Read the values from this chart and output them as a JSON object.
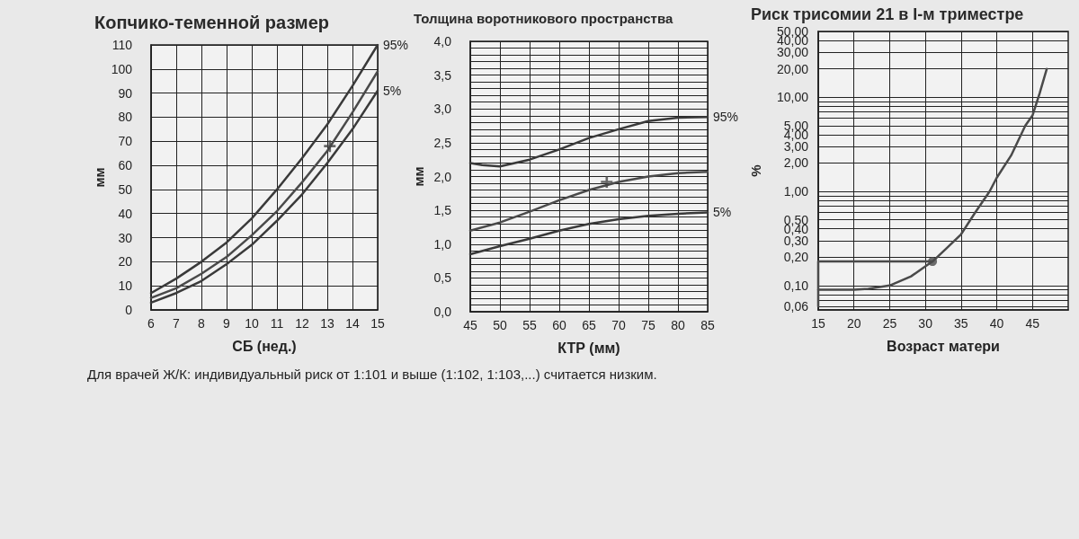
{
  "chart_data": [
    {
      "type": "line",
      "title": "Копчико-теменной размер",
      "xlabel": "СБ (нед.)",
      "ylabel": "мм",
      "xlim": [
        6,
        15
      ],
      "xticks": [
        6,
        7,
        8,
        9,
        10,
        11,
        12,
        13,
        14,
        15
      ],
      "ylim": [
        0,
        110
      ],
      "yticks": [
        0,
        10,
        20,
        30,
        40,
        50,
        60,
        70,
        80,
        90,
        100,
        110
      ],
      "grid": true,
      "legend": false,
      "marker": "none",
      "line_style": "solid",
      "annotations": [
        "Для врачей Ж/К: индивидуальный риск от 1:101 и выше (1:102, 1:103,...) считается низким."
      ],
      "series": [
        {
          "name": "95%",
          "color": "#3a3a3a",
          "x": [
            6,
            7,
            8,
            9,
            10,
            11,
            12,
            13,
            14,
            15
          ],
          "values": [
            7,
            13,
            20,
            28,
            38,
            50,
            63,
            77,
            93,
            110
          ]
        },
        {
          "color": "#4a4a4a",
          "x": [
            6,
            7,
            8,
            9,
            10,
            11,
            12,
            13,
            14,
            15
          ],
          "values": [
            5,
            9,
            15,
            22,
            31,
            41,
            53,
            66,
            82,
            99
          ]
        },
        {
          "name": "5%",
          "color": "#3a3a3a",
          "x": [
            6,
            7,
            8,
            9,
            10,
            11,
            12,
            13,
            14,
            15
          ],
          "values": [
            3,
            7,
            12,
            19,
            27,
            37,
            48,
            61,
            75,
            91
          ]
        },
        {
          "type": "scatter",
          "marker": "cross",
          "color": "#444444",
          "x": [
            13.1
          ],
          "values": [
            68
          ]
        }
      ]
    },
    {
      "type": "line",
      "title": "Толщина воротникового пространства",
      "xlabel": "КТР (мм)",
      "ylabel": "мм",
      "xlim": [
        45,
        85
      ],
      "xticks": [
        45,
        50,
        55,
        60,
        65,
        70,
        75,
        80,
        85
      ],
      "ylim": [
        0,
        4
      ],
      "yticks": [
        {
          "value": 0,
          "label": "0,0"
        },
        {
          "value": 0.1,
          "label": null
        },
        {
          "value": 0.2,
          "label": null
        },
        {
          "value": 0.3,
          "label": null
        },
        {
          "value": 0.4,
          "label": null
        },
        {
          "value": 0.5,
          "label": "0,5"
        },
        {
          "value": 0.6,
          "label": null
        },
        {
          "value": 0.7,
          "label": null
        },
        {
          "value": 0.8,
          "label": null
        },
        {
          "value": 0.9,
          "label": null
        },
        {
          "value": 1,
          "label": "1,0"
        },
        {
          "value": 1.1,
          "label": null
        },
        {
          "value": 1.2,
          "label": null
        },
        {
          "value": 1.3,
          "label": null
        },
        {
          "value": 1.4,
          "label": null
        },
        {
          "value": 1.5,
          "label": "1,5"
        },
        {
          "value": 1.6,
          "label": null
        },
        {
          "value": 1.7,
          "label": null
        },
        {
          "value": 1.8,
          "label": null
        },
        {
          "value": 1.9,
          "label": null
        },
        {
          "value": 2,
          "label": "2,0"
        },
        {
          "value": 2.1,
          "label": null
        },
        {
          "value": 2.2,
          "label": null
        },
        {
          "value": 2.3,
          "label": null
        },
        {
          "value": 2.4,
          "label": null
        },
        {
          "value": 2.5,
          "label": "2,5"
        },
        {
          "value": 2.6,
          "label": null
        },
        {
          "value": 2.7,
          "label": null
        },
        {
          "value": 2.8,
          "label": null
        },
        {
          "value": 2.9,
          "label": null
        },
        {
          "value": 3,
          "label": "3,0"
        },
        {
          "value": 3.1,
          "label": null
        },
        {
          "value": 3.2,
          "label": null
        },
        {
          "value": 3.3,
          "label": null
        },
        {
          "value": 3.4,
          "label": null
        },
        {
          "value": 3.5,
          "label": "3,5"
        },
        {
          "value": 3.6,
          "label": null
        },
        {
          "value": 3.7,
          "label": null
        },
        {
          "value": 3.8,
          "label": null
        },
        {
          "value": 3.9,
          "label": null
        },
        {
          "value": 4,
          "label": "4,0"
        }
      ],
      "grid": true,
      "legend": false,
      "marker": "none",
      "line_style": "solid",
      "series": [
        {
          "name": "95%",
          "color": "#3a3a3a",
          "x": [
            45,
            47,
            50,
            55,
            60,
            65,
            70,
            75,
            80,
            85
          ],
          "values": [
            2.2,
            2.17,
            2.15,
            2.25,
            2.4,
            2.57,
            2.7,
            2.82,
            2.87,
            2.88
          ]
        },
        {
          "color": "#4a4a4a",
          "x": [
            45,
            50,
            55,
            60,
            65,
            70,
            75,
            80,
            85
          ],
          "values": [
            1.2,
            1.32,
            1.48,
            1.65,
            1.8,
            1.92,
            2.0,
            2.05,
            2.07
          ]
        },
        {
          "name": "5%",
          "color": "#3a3a3a",
          "x": [
            45,
            50,
            55,
            60,
            65,
            70,
            75,
            80,
            85
          ],
          "values": [
            0.85,
            0.97,
            1.08,
            1.2,
            1.3,
            1.37,
            1.42,
            1.45,
            1.47
          ]
        },
        {
          "type": "scatter",
          "marker": "cross",
          "color": "#444444",
          "x": [
            68
          ],
          "values": [
            1.92
          ]
        }
      ]
    },
    {
      "type": "line",
      "title": "Риск трисомии 21 в I-м триместре",
      "xlabel": "Возраст матери",
      "ylabel": "%",
      "log": "y",
      "xlim": [
        15,
        50
      ],
      "xticks": [
        15,
        20,
        25,
        30,
        35,
        40,
        45
      ],
      "ylim": [
        0.055,
        50
      ],
      "yticks": [
        {
          "value": 0.06,
          "label": "0,06"
        },
        {
          "value": 0.07,
          "label": null
        },
        {
          "value": 0.08,
          "label": null
        },
        {
          "value": 0.09,
          "label": null
        },
        {
          "value": 0.1,
          "label": "0,10"
        },
        {
          "value": 0.2,
          "label": "0,20"
        },
        {
          "value": 0.3,
          "label": "0,30"
        },
        {
          "value": 0.4,
          "label": "0,40"
        },
        {
          "value": 0.5,
          "label": "0,50"
        },
        {
          "value": 0.6,
          "label": null
        },
        {
          "value": 0.7,
          "label": null
        },
        {
          "value": 0.8,
          "label": null
        },
        {
          "value": 0.9,
          "label": null
        },
        {
          "value": 1,
          "label": "1,00"
        },
        {
          "value": 2,
          "label": "2,00"
        },
        {
          "value": 3,
          "label": "3,00"
        },
        {
          "value": 4,
          "label": "4,00"
        },
        {
          "value": 5,
          "label": "5,00"
        },
        {
          "value": 6,
          "label": null
        },
        {
          "value": 7,
          "label": null
        },
        {
          "value": 8,
          "label": null
        },
        {
          "value": 9,
          "label": null
        },
        {
          "value": 10,
          "label": "10,00"
        },
        {
          "value": 20,
          "label": "20,00"
        },
        {
          "value": 30,
          "label": "30,00"
        },
        {
          "value": 40,
          "label": "40,00"
        },
        {
          "value": 50,
          "label": "50,00"
        }
      ],
      "grid": true,
      "legend": false,
      "marker": "none",
      "line_style": "solid",
      "series": [
        {
          "color": "#4a4a4a",
          "x": [
            15,
            20,
            22,
            25,
            28,
            30,
            31,
            33,
            35,
            37,
            39,
            40,
            42,
            44,
            45,
            46,
            47
          ],
          "values": [
            0.09,
            0.09,
            0.092,
            0.1,
            0.125,
            0.16,
            0.18,
            0.25,
            0.35,
            0.6,
            1.0,
            1.4,
            2.4,
            5.0,
            6.4,
            11,
            20
          ]
        },
        {
          "color": "#4a4a4a",
          "x": [
            31,
            15,
            15
          ],
          "values": [
            0.18,
            0.18,
            0.06
          ]
        },
        {
          "type": "scatter",
          "marker": "circle",
          "color": "#4a4a4a",
          "x": [
            31
          ],
          "values": [
            0.18
          ]
        }
      ]
    }
  ]
}
